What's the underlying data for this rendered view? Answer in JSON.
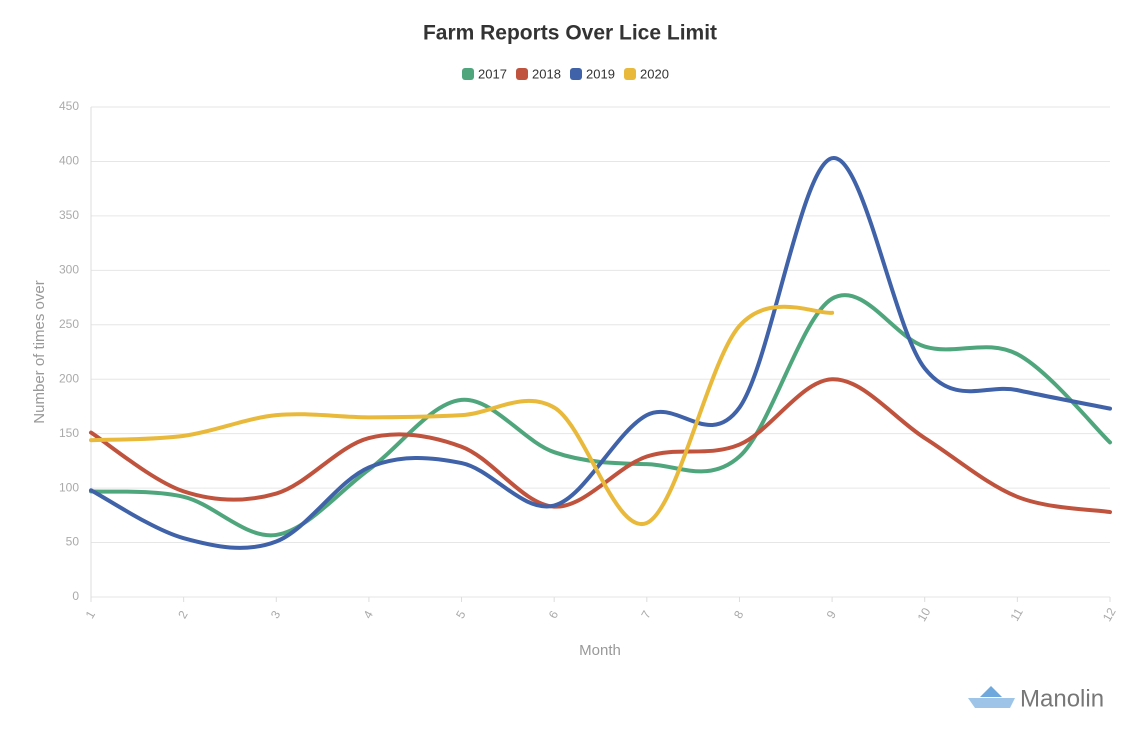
{
  "chart_data": {
    "type": "line",
    "title": "Farm Reports Over Lice Limit",
    "x_label": "Month",
    "y_label": "Number of times over",
    "x": [
      1,
      2,
      3,
      4,
      5,
      6,
      7,
      8,
      9,
      10,
      11,
      12
    ],
    "xlim": [
      1,
      12
    ],
    "xticks": [
      1,
      2,
      3,
      4,
      5,
      6,
      7,
      8,
      9,
      10,
      11,
      12
    ],
    "ylim": [
      0,
      450
    ],
    "yticks": [
      0,
      50,
      100,
      150,
      200,
      250,
      300,
      350,
      400,
      450
    ],
    "grid": true,
    "legend": "top",
    "series": [
      {
        "name": "2017",
        "color": "#4fa67d",
        "values": [
          97,
          92,
          57,
          117,
          181,
          133,
          122,
          129,
          274,
          230,
          223,
          142
        ]
      },
      {
        "name": "2018",
        "color": "#c0533e",
        "values": [
          151,
          97,
          95,
          146,
          138,
          83,
          129,
          140,
          200,
          146,
          92,
          78
        ]
      },
      {
        "name": "2019",
        "color": "#3f62a8",
        "values": [
          98,
          54,
          51,
          119,
          123,
          84,
          167,
          174,
          403,
          210,
          190,
          173
        ]
      },
      {
        "name": "2020",
        "color": "#e8b93b",
        "values": [
          144,
          148,
          167,
          165,
          167,
          174,
          68,
          249,
          261,
          null,
          null,
          null
        ]
      }
    ]
  },
  "brand": "Manolin"
}
